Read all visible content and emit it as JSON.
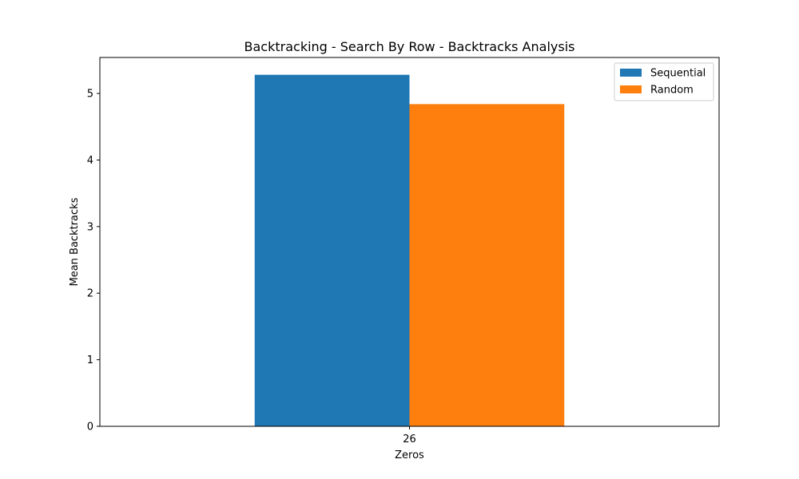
{
  "chart_data": {
    "type": "bar",
    "title": "Backtracking - Search By Row - Backtracks Analysis",
    "xlabel": "Zeros",
    "ylabel": "Mean Backtracks",
    "categories": [
      "26"
    ],
    "series": [
      {
        "name": "Sequential",
        "values": [
          5.28
        ],
        "color": "#1f77b4"
      },
      {
        "name": "Random",
        "values": [
          4.84
        ],
        "color": "#ff7f0e"
      }
    ],
    "ylim": [
      0,
      5.54
    ],
    "yticks": [
      "0",
      "1",
      "2",
      "3",
      "4",
      "5"
    ],
    "grid": false,
    "legend_position": "top-right"
  }
}
